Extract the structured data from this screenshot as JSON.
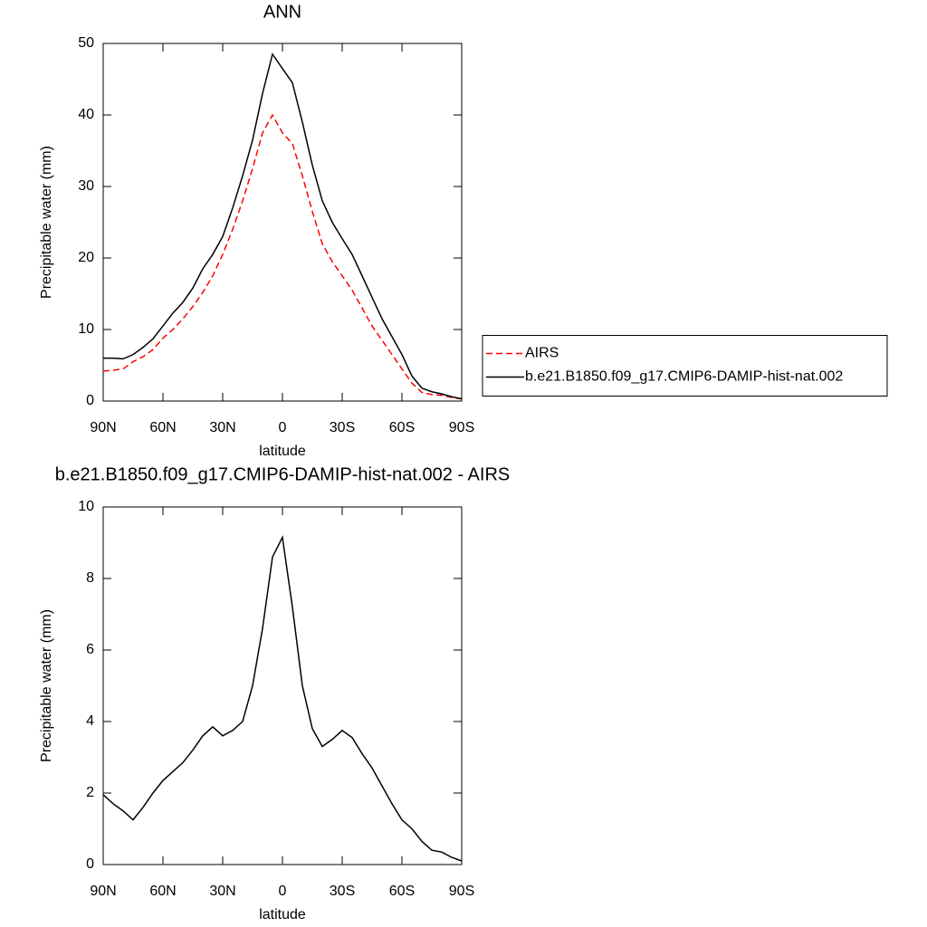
{
  "chart_data": [
    {
      "type": "line",
      "title": "ANN",
      "xlabel": "latitude",
      "ylabel": "Precipitable water (mm)",
      "x": [
        90,
        85,
        80,
        75,
        70,
        65,
        60,
        55,
        50,
        45,
        40,
        35,
        30,
        25,
        20,
        15,
        10,
        5,
        0,
        -5,
        -10,
        -15,
        -20,
        -25,
        -30,
        -35,
        -40,
        -45,
        -50,
        -55,
        -60,
        -65,
        -70,
        -75,
        -80,
        -85,
        -90
      ],
      "series": [
        {
          "name": "AIRS",
          "color": "red",
          "dash": "dashed",
          "values": [
            4.2,
            4.3,
            4.5,
            5.5,
            6.2,
            7.2,
            8.8,
            10,
            11.5,
            13.2,
            15.2,
            17.5,
            20.5,
            24,
            28,
            32.5,
            37.5,
            40,
            37.5,
            36,
            31.5,
            26.5,
            22,
            19.5,
            17.5,
            15.5,
            13,
            10.5,
            8.5,
            6.5,
            4.5,
            2.5,
            1.2,
            0.9,
            0.8,
            0.5,
            0.3
          ]
        },
        {
          "name": "b.e21.B1850.f09_g17.CMIP6-DAMIP-hist-nat.002",
          "color": "black",
          "dash": "solid",
          "values": [
            6.0,
            6.0,
            5.9,
            6.5,
            7.5,
            8.7,
            10.5,
            12.3,
            13.8,
            15.8,
            18.5,
            20.5,
            23,
            27,
            31.5,
            36.5,
            43,
            48.5,
            46.5,
            44.5,
            39,
            33,
            28,
            25,
            22.7,
            20.5,
            17.5,
            14.5,
            11.5,
            9,
            6.5,
            3.5,
            1.8,
            1.3,
            1.0,
            0.6,
            0.3
          ]
        }
      ],
      "xlim": [
        90,
        -90
      ],
      "xticks": [
        {
          "value": 90,
          "label": "90N"
        },
        {
          "value": 60,
          "label": "60N"
        },
        {
          "value": 30,
          "label": "30N"
        },
        0,
        {
          "value": -30,
          "label": "30S"
        },
        {
          "value": -60,
          "label": "60S"
        },
        {
          "value": -90,
          "label": "90S"
        }
      ],
      "ylim": [
        0,
        50
      ],
      "yticks": [
        0,
        10,
        20,
        30,
        40,
        50
      ],
      "legend": "right"
    },
    {
      "type": "line",
      "title": "b.e21.B1850.f09_g17.CMIP6-DAMIP-hist-nat.002 - AIRS",
      "xlabel": "latitude",
      "ylabel": "Precipitable water (mm)",
      "x": [
        90,
        85,
        80,
        75,
        70,
        65,
        60,
        55,
        50,
        45,
        40,
        35,
        30,
        25,
        20,
        15,
        10,
        5,
        0,
        -5,
        -10,
        -15,
        -20,
        -25,
        -30,
        -35,
        -40,
        -45,
        -50,
        -55,
        -60,
        -65,
        -70,
        -75,
        -80,
        -85,
        -90
      ],
      "series": [
        {
          "color": "black",
          "dash": "solid",
          "values": [
            1.95,
            1.7,
            1.5,
            1.25,
            1.6,
            2.0,
            2.35,
            2.6,
            2.85,
            3.2,
            3.6,
            3.85,
            3.6,
            3.75,
            4.0,
            5.0,
            6.6,
            8.6,
            9.15,
            7.2,
            5.0,
            3.8,
            3.3,
            3.5,
            3.75,
            3.55,
            3.1,
            2.7,
            2.2,
            1.7,
            1.25,
            1.0,
            0.65,
            0.4,
            0.35,
            0.2,
            0.1
          ]
        }
      ],
      "xlim": [
        90,
        -90
      ],
      "xticks": [
        {
          "value": 90,
          "label": "90N"
        },
        {
          "value": 60,
          "label": "60N"
        },
        {
          "value": 30,
          "label": "30N"
        },
        0,
        {
          "value": -30,
          "label": "30S"
        },
        {
          "value": -60,
          "label": "60S"
        },
        {
          "value": -90,
          "label": "90S"
        }
      ],
      "ylim": [
        0,
        10
      ],
      "yticks": [
        0,
        2,
        4,
        6,
        8,
        10
      ]
    }
  ]
}
